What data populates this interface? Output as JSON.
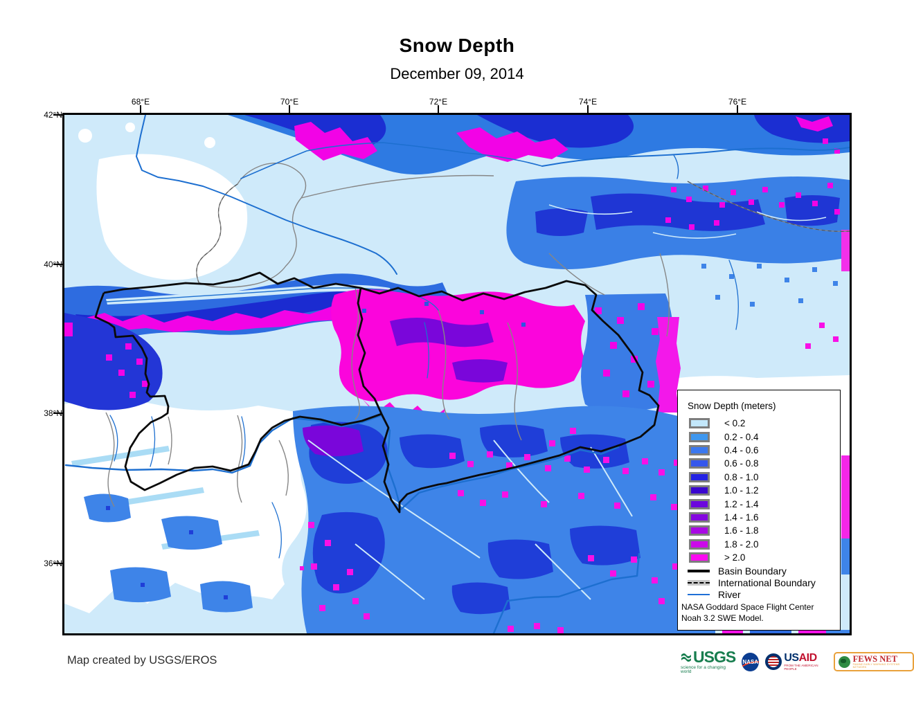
{
  "title": "Snow Depth",
  "subtitle": "December 09, 2014",
  "map_credit": "Map created by USGS/EROS",
  "axes": {
    "longitude": [
      "68°E",
      "70°E",
      "72°E",
      "74°E",
      "76°E"
    ],
    "latitude": [
      "42°N",
      "40°N",
      "38°N",
      "36°N"
    ]
  },
  "legend": {
    "title": "Snow Depth (meters)",
    "classes": [
      {
        "label": "< 0.2",
        "color": "#c3e7fa"
      },
      {
        "label": "0.2 - 0.4",
        "color": "#3e97ef"
      },
      {
        "label": "0.4 - 0.6",
        "color": "#3b78ef"
      },
      {
        "label": "0.6 - 0.8",
        "color": "#3557ec"
      },
      {
        "label": "0.8 - 1.0",
        "color": "#2423e4"
      },
      {
        "label": "1.0 - 1.2",
        "color": "#3a06cf"
      },
      {
        "label": "1.2 - 1.4",
        "color": "#6b07dd"
      },
      {
        "label": "1.4 - 1.6",
        "color": "#8508df"
      },
      {
        "label": "1.6 - 1.8",
        "color": "#a808e4"
      },
      {
        "label": "1.8 - 2.0",
        "color": "#cb0ae9"
      },
      {
        "label": "> 2.0",
        "color": "#fb0af0"
      }
    ],
    "lines": [
      {
        "label": "Basin Boundary",
        "type": "basin",
        "color": "#000000"
      },
      {
        "label": "International Boundary",
        "type": "international",
        "color": "#9e9e9e"
      },
      {
        "label": "River",
        "type": "river",
        "color": "#1f6fd6"
      }
    ],
    "source_note_line1": "NASA Goddard Space Flight Center",
    "source_note_line2": "Noah 3.2 SWE Model."
  },
  "logos": {
    "usgs": {
      "name": "USGS",
      "tagline": "science for a changing world"
    },
    "nasa": {
      "name": "NASA"
    },
    "usaid": {
      "name_us": "US",
      "name_aid": "AID",
      "tagline": "FROM THE AMERICAN PEOPLE"
    },
    "fews": {
      "name": "FEWS NET",
      "tagline": "FAMINE EARLY WARNING SYSTEMS NETWORK"
    }
  }
}
